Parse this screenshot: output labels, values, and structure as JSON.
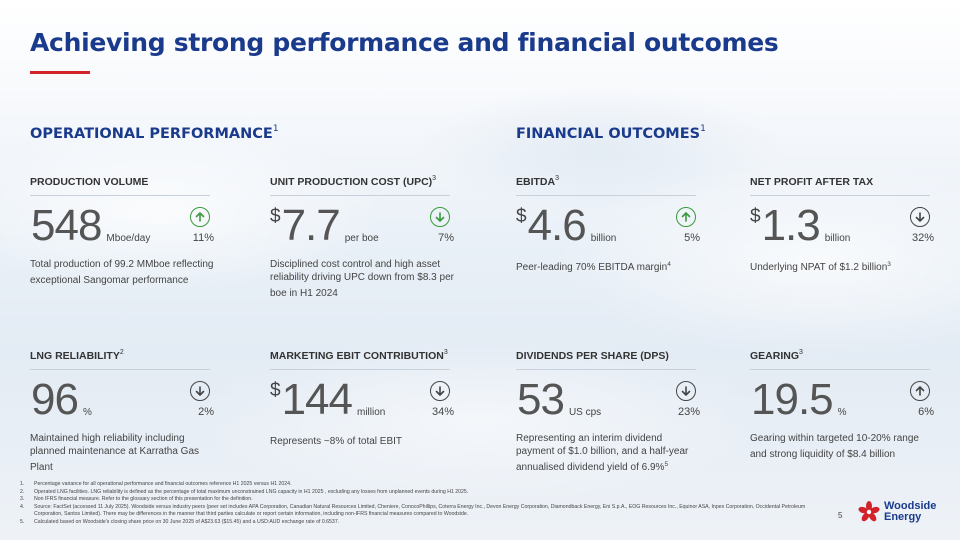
{
  "title": "Achieving strong performance and financial outcomes",
  "sections": {
    "operational": {
      "title": "OPERATIONAL PERFORMANCE",
      "note": "1"
    },
    "financial": {
      "title": "FINANCIAL OUTCOMES",
      "note": "1"
    }
  },
  "colors": {
    "brand_blue": "#1a3a8c",
    "accent_red": "#d2232a",
    "up_green": "#3a9a3c",
    "down_grey": "#444444"
  },
  "cards": [
    {
      "label": "PRODUCTION VOLUME",
      "note": "",
      "currency": "",
      "value": "548",
      "unit": "Mboe/day",
      "direction": "up",
      "percent": "11%",
      "desc": "Total production of 99.2 MMboe reflecting exceptional Sangomar performance",
      "desc_note": ""
    },
    {
      "label": "UNIT PRODUCTION COST (UPC)",
      "note": "3",
      "currency": "$",
      "value": "7.7",
      "unit": "per boe",
      "direction": "down-green",
      "percent": "7%",
      "desc": "Disciplined cost control and high asset reliability driving UPC down from $8.3 per boe in H1 2024",
      "desc_note": ""
    },
    {
      "label": "EBITDA",
      "note": "3",
      "currency": "$",
      "value": "4.6",
      "unit": "billion",
      "direction": "up",
      "percent": "5%",
      "desc": "Peer-leading 70% EBITDA margin",
      "desc_note": "4"
    },
    {
      "label": "NET PROFIT AFTER TAX",
      "note": "",
      "currency": "$",
      "value": "1.3",
      "unit": "billion",
      "direction": "down",
      "percent": "32%",
      "desc": "Underlying NPAT of $1.2 billion",
      "desc_note": "3"
    },
    {
      "label": "LNG RELIABILITY",
      "note": "2",
      "currency": "",
      "value": "96",
      "unit": "%",
      "direction": "down",
      "percent": "2%",
      "desc": "Maintained high reliability including planned maintenance at Karratha Gas Plant",
      "desc_note": ""
    },
    {
      "label": "MARKETING EBIT CONTRIBUTION",
      "note": "3",
      "currency": "$",
      "value": "144",
      "unit": "million",
      "direction": "down",
      "percent": "34%",
      "desc": "Represents ~8% of total EBIT",
      "desc_note": ""
    },
    {
      "label": "DIVIDENDS PER SHARE (DPS)",
      "note": "",
      "currency": "",
      "value": "53",
      "unit": "US cps",
      "direction": "down",
      "percent": "23%",
      "desc": "Representing an interim dividend payment of $1.0 billion, and a half-year annualised dividend yield of 6.9%",
      "desc_note": "5"
    },
    {
      "label": "GEARING",
      "note": "3",
      "currency": "",
      "value": "19.5",
      "unit": "%",
      "direction": "up-grey",
      "percent": "6%",
      "desc": "Gearing within targeted 10-20% range and strong liquidity of $8.4 billion",
      "desc_note": ""
    }
  ],
  "footnotes": [
    {
      "num": "1.",
      "text": "Percentage variance for all operational performance and financial outcomes reference H1 2025 versus H1 2024."
    },
    {
      "num": "2.",
      "text": "Operated LNG facilities. LNG reliability is defined as the percentage of total maximum unconstrained LNG capacity in H1 2025 , excluding any losses from unplanned events during H1 2025."
    },
    {
      "num": "3.",
      "text": "Non IFRS financial measure. Refer to the glossary section of this presentation for the definition."
    },
    {
      "num": "4.",
      "text": "Source: FactSet (accessed 11 July 2025). Woodside versus industry peers (peer set includes APA Corporation, Canadian Natural Resources Limited, Cheniere, ConocoPhillips, Coterra Energy Inc., Devon Energy Corporation, Diamondback Energy, Eni S.p.A., EOG Resources Inc., Equinor ASA, Inpex Corporation, Occidental Petroleum Corporation, Santos Limited). There may be differences in the manner that third parties calculate or report certain information, including non-IFRS financial measures compared to Woodside."
    },
    {
      "num": "5.",
      "text": "Calculated based on Woodside's closing share price on 30 June 2025 of A$23.63 ($15.45) and a USD:AUD exchange rate of 0.6537."
    }
  ],
  "page_number": "5",
  "logo": {
    "line1": "Woodside",
    "line2": "Energy",
    "icon": "woodside-flower-logo"
  }
}
